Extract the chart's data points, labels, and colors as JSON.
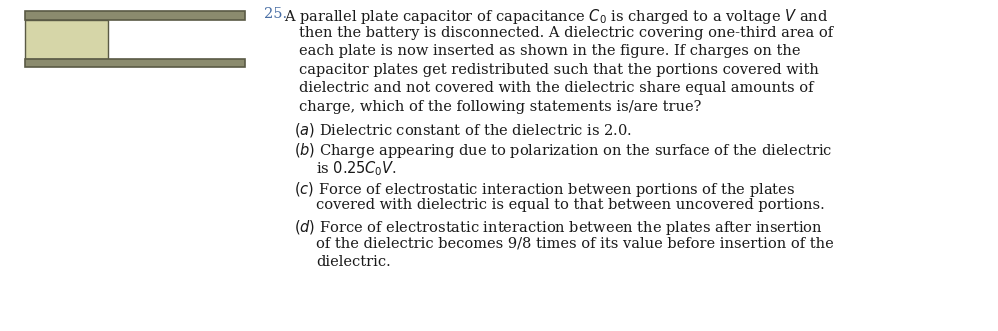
{
  "bg_color": "#ffffff",
  "fig_width": 9.98,
  "fig_height": 3.31,
  "dpi": 100,
  "question_number": "25.",
  "number_color": "#4a6fa5",
  "text_color": "#1a1a1a",
  "main_text_lines": [
    "A parallel plate capacitor of capacitance $C_0$ is charged to a voltage $V$ and",
    "then the battery is disconnected. A dielectric covering one-third area of",
    "each plate is now inserted as shown in the figure. If charges on the",
    "capacitor plates get redistributed such that the portions covered with",
    "dielectric and not covered with the dielectric share equal amounts of",
    "charge, which of the following statements is/are true?"
  ],
  "option_a_line1": "$(a)$ Dielectric constant of the dielectric is 2.0.",
  "option_b_line1": "$(b)$ Charge appearing due to polarization on the surface of the dielectric",
  "option_b_line2": "is $0.25C_0V$.",
  "option_c_line1": "$(c)$ Force of electrostatic interaction between portions of the plates",
  "option_c_line2": "covered with dielectric is equal to that between uncovered portions.",
  "option_d_line1": "$(d)$ Force of electrostatic interaction between the plates after insertion",
  "option_d_line2": "of the dielectric becomes 9/8 times of its value before insertion of the",
  "option_d_line3": "dielectric.",
  "plate_color": "#8b8b6e",
  "dielectric_color": "#d6d6a8",
  "plate_border": "#5a5a45",
  "font_size_main": 10.5,
  "font_family": "DejaVu Serif"
}
